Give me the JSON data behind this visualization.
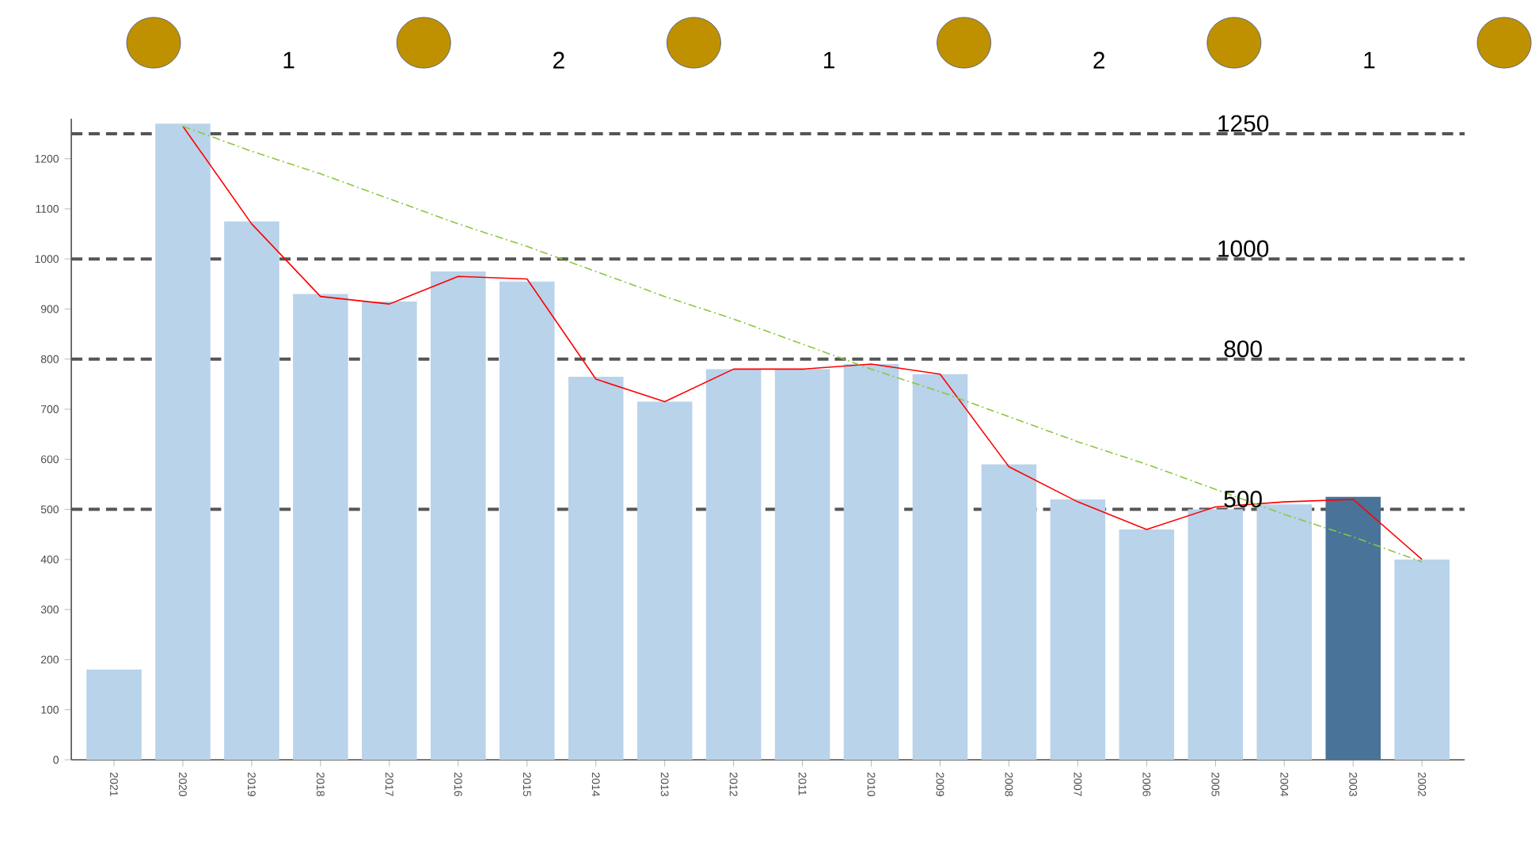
{
  "chart_data": {
    "type": "bar",
    "categories": [
      "2021",
      "2020",
      "2019",
      "2018",
      "2017",
      "2016",
      "2015",
      "2014",
      "2013",
      "2012",
      "2011",
      "2010",
      "2009",
      "2008",
      "2007",
      "2006",
      "2005",
      "2004",
      "2003",
      "2002"
    ],
    "series": [
      {
        "values": [
          180,
          1270,
          1075,
          930,
          915,
          975,
          955,
          765,
          715,
          780,
          780,
          790,
          770,
          590,
          520,
          460,
          500,
          510,
          525,
          400
        ],
        "colors": [
          "#b9d3ea",
          "#b9d3ea",
          "#b9d3ea",
          "#b9d3ea",
          "#b9d3ea",
          "#b9d3ea",
          "#b9d3ea",
          "#b9d3ea",
          "#b9d3ea",
          "#b9d3ea",
          "#b9d3ea",
          "#b9d3ea",
          "#b9d3ea",
          "#b9d3ea",
          "#b9d3ea",
          "#b9d3ea",
          "#b9d3ea",
          "#b9d3ea",
          "#4a7399",
          "#b9d3ea"
        ]
      },
      {
        "type": "line",
        "color": "#ff0000",
        "values": [
          null,
          1265,
          1070,
          925,
          910,
          965,
          960,
          760,
          715,
          780,
          780,
          790,
          770,
          585,
          515,
          460,
          505,
          515,
          520,
          400
        ]
      },
      {
        "type": "line",
        "color": "#8cc63f",
        "line_style": "dashdot",
        "values": [
          null,
          1265,
          1215,
          1170,
          1120,
          1070,
          1025,
          975,
          925,
          880,
          830,
          780,
          735,
          685,
          635,
          590,
          540,
          490,
          445,
          395
        ]
      }
    ],
    "ylim": [
      0,
      1280
    ],
    "yticks": [
      0,
      100,
      200,
      300,
      400,
      500,
      600,
      700,
      800,
      900,
      1000,
      1100,
      1200
    ],
    "ref_lines": [
      {
        "axis": "y",
        "value": 1250,
        "label": "1250",
        "color": "#555555",
        "line_style": "dashed"
      },
      {
        "axis": "y",
        "value": 1000,
        "label": "1000",
        "color": "#555555",
        "line_style": "dashed"
      },
      {
        "axis": "y",
        "value": 800,
        "label": "800",
        "color": "#555555",
        "line_style": "dashed"
      },
      {
        "axis": "y",
        "value": 500,
        "label": "500",
        "color": "#555555",
        "line_style": "dashed"
      }
    ],
    "annotations": [
      "1",
      "2",
      "1",
      "2",
      "1"
    ]
  }
}
